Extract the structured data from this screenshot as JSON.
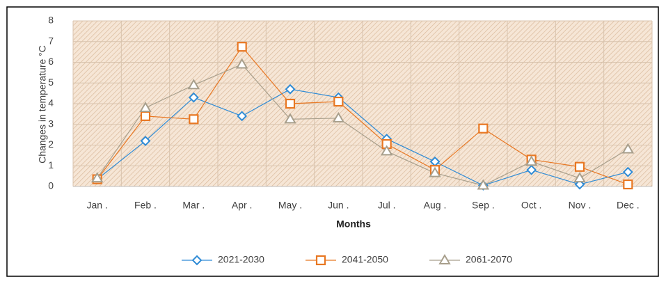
{
  "chart_data": {
    "type": "line",
    "y_label": "Changes in temperature °C",
    "x_label": "Months",
    "categories": [
      "Jan .",
      "Feb .",
      "Mar .",
      "Apr .",
      "May .",
      "Jun .",
      "Jul .",
      "Aug .",
      "Sep .",
      "Oct .",
      "Nov .",
      "Dec ."
    ],
    "series": [
      {
        "name": "2021-2030",
        "color": "#2e8bd6",
        "marker": "diamond",
        "values": [
          0.35,
          2.2,
          4.3,
          3.4,
          4.7,
          4.3,
          2.3,
          1.2,
          0.05,
          0.8,
          0.1,
          0.7
        ]
      },
      {
        "name": "2041-2050",
        "color": "#e87722",
        "marker": "square",
        "values": [
          0.35,
          3.4,
          3.25,
          6.75,
          4.0,
          4.1,
          2.05,
          0.8,
          2.8,
          1.3,
          0.95,
          0.1
        ]
      },
      {
        "name": "2061-2070",
        "color": "#a89f8c",
        "marker": "triangle",
        "values": [
          0.4,
          3.8,
          4.9,
          5.9,
          3.25,
          3.3,
          1.7,
          0.65,
          0.05,
          1.2,
          0.4,
          1.8
        ]
      }
    ],
    "ylim": [
      0,
      8
    ],
    "yticks": [
      0,
      1,
      2,
      3,
      4,
      5,
      6,
      7,
      8
    ],
    "grid": true,
    "legend": "bottom"
  }
}
